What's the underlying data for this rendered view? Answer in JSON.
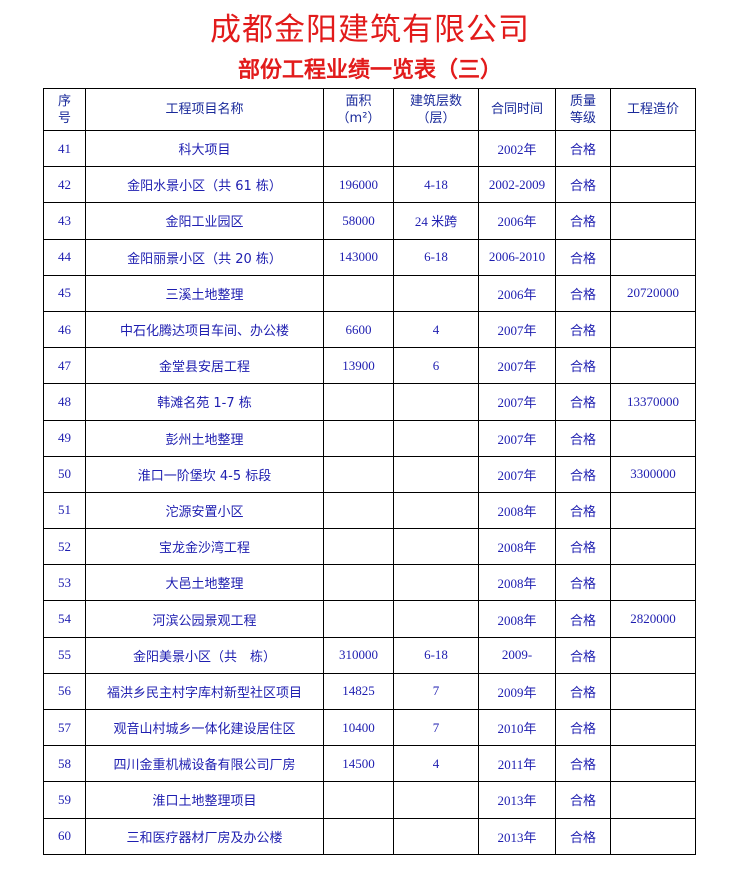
{
  "header": {
    "company": "成都金阳建筑有限公司",
    "subtitle": "部份工程业绩一览表（三）"
  },
  "columns": {
    "seq": [
      "序",
      "号"
    ],
    "name": "工程项目名称",
    "area": [
      "面积",
      "（m²）"
    ],
    "floors": [
      "建筑层数",
      "（层）"
    ],
    "date": "合同时间",
    "grade": [
      "质量",
      "等级"
    ],
    "cost": "工程造价"
  },
  "rows": [
    {
      "seq": "41",
      "name": "科大项目",
      "area": "",
      "floors": "",
      "date": "2002年",
      "grade": "合格",
      "cost": ""
    },
    {
      "seq": "42",
      "name": "金阳水景小区（共 61 栋）",
      "area": "196000",
      "floors": "4-18",
      "date": "2002-2009",
      "grade": "合格",
      "cost": ""
    },
    {
      "seq": "43",
      "name": "金阳工业园区",
      "area": "58000",
      "floors": "24 米跨",
      "date": "2006年",
      "grade": "合格",
      "cost": ""
    },
    {
      "seq": "44",
      "name": "金阳丽景小区（共 20 栋）",
      "area": "143000",
      "floors": "6-18",
      "date": "2006-2010",
      "grade": "合格",
      "cost": ""
    },
    {
      "seq": "45",
      "name": "三溪土地整理",
      "area": "",
      "floors": "",
      "date": "2006年",
      "grade": "合格",
      "cost": "20720000"
    },
    {
      "seq": "46",
      "name": "中石化腾达项目车间、办公楼",
      "area": "6600",
      "floors": "4",
      "date": "2007年",
      "grade": "合格",
      "cost": ""
    },
    {
      "seq": "47",
      "name": "金堂县安居工程",
      "area": "13900",
      "floors": "6",
      "date": "2007年",
      "grade": "合格",
      "cost": ""
    },
    {
      "seq": "48",
      "name": "韩滩名苑 1-7 栋",
      "area": "",
      "floors": "",
      "date": "2007年",
      "grade": "合格",
      "cost": "13370000"
    },
    {
      "seq": "49",
      "name": "彭州土地整理",
      "area": "",
      "floors": "",
      "date": "2007年",
      "grade": "合格",
      "cost": ""
    },
    {
      "seq": "50",
      "name": "淮口一阶堡坎 4-5 标段",
      "area": "",
      "floors": "",
      "date": "2007年",
      "grade": "合格",
      "cost": "3300000"
    },
    {
      "seq": "51",
      "name": "沱源安置小区",
      "area": "",
      "floors": "",
      "date": "2008年",
      "grade": "合格",
      "cost": ""
    },
    {
      "seq": "52",
      "name": "宝龙金沙湾工程",
      "area": "",
      "floors": "",
      "date": "2008年",
      "grade": "合格",
      "cost": ""
    },
    {
      "seq": "53",
      "name": "大邑土地整理",
      "area": "",
      "floors": "",
      "date": "2008年",
      "grade": "合格",
      "cost": ""
    },
    {
      "seq": "54",
      "name": "河滨公园景观工程",
      "area": "",
      "floors": "",
      "date": "2008年",
      "grade": "合格",
      "cost": "2820000"
    },
    {
      "seq": "55",
      "name": "金阳美景小区（共　栋）",
      "area": "310000",
      "floors": "6-18",
      "date": "2009-",
      "grade": "合格",
      "cost": ""
    },
    {
      "seq": "56",
      "name": "福洪乡民主村字库村新型社区项目",
      "area": "14825",
      "floors": "7",
      "date": "2009年",
      "grade": "合格",
      "cost": ""
    },
    {
      "seq": "57",
      "name": "观音山村城乡一体化建设居住区",
      "area": "10400",
      "floors": "7",
      "date": "2010年",
      "grade": "合格",
      "cost": ""
    },
    {
      "seq": "58",
      "name": "四川金重机械设备有限公司厂房",
      "area": "14500",
      "floors": "4",
      "date": "2011年",
      "grade": "合格",
      "cost": ""
    },
    {
      "seq": "59",
      "name": "淮口土地整理项目",
      "area": "",
      "floors": "",
      "date": "2013年",
      "grade": "合格",
      "cost": ""
    },
    {
      "seq": "60",
      "name": "三和医疗器材厂房及办公楼",
      "area": "",
      "floors": "",
      "date": "2013年",
      "grade": "合格",
      "cost": ""
    }
  ]
}
